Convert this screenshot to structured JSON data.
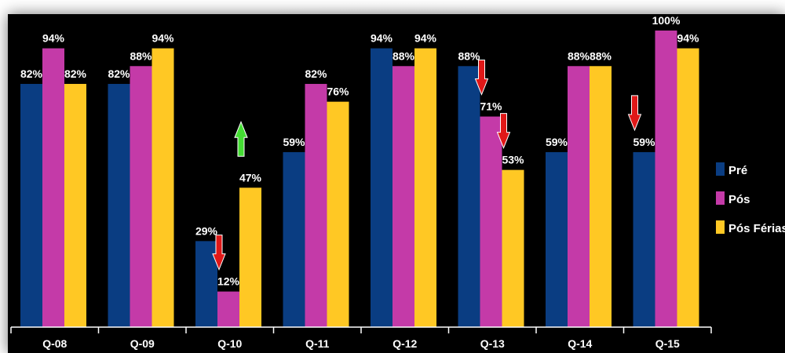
{
  "chart_data": {
    "type": "bar",
    "categories": [
      "Q-08",
      "Q-09",
      "Q-10",
      "Q-11",
      "Q-12",
      "Q-13",
      "Q-14",
      "Q-15"
    ],
    "series": [
      {
        "name": "Pré",
        "color": "#0a3d82",
        "values": [
          82,
          82,
          29,
          59,
          94,
          88,
          59,
          59
        ]
      },
      {
        "name": "Pós",
        "color": "#c43aa8",
        "values": [
          94,
          88,
          12,
          82,
          88,
          71,
          88,
          100
        ]
      },
      {
        "name": "Pós Férias",
        "color": "#ffc824",
        "values": [
          82,
          94,
          47,
          76,
          94,
          53,
          88,
          94
        ]
      }
    ],
    "value_labels": [
      [
        "82%",
        "82%",
        "29%",
        "59%",
        "94%",
        "88%",
        "59%",
        "59%"
      ],
      [
        "94%",
        "88%",
        "12%",
        "82%",
        "88%",
        "71%",
        "88%",
        "100%"
      ],
      [
        "82%",
        "94%",
        "47%",
        "76%",
        "94%",
        "53%",
        "88%",
        "94%"
      ]
    ],
    "ylim": [
      0,
      105
    ],
    "legend_position": "right",
    "annotations": [
      {
        "type": "arrow-down",
        "color": "#e01818",
        "category": "Q-10",
        "series": 1
      },
      {
        "type": "arrow-up",
        "color": "#44dd33",
        "category": "Q-10",
        "series": 2
      },
      {
        "type": "arrow-down",
        "color": "#e01818",
        "category": "Q-13",
        "series": 1
      },
      {
        "type": "arrow-down",
        "color": "#e01818",
        "category": "Q-13",
        "series": 2
      },
      {
        "type": "arrow-down",
        "color": "#e01818",
        "category": "Q-15",
        "series": 0
      },
      {
        "type": "arrow-up",
        "color": "#44dd33",
        "category": "Q-15",
        "series": 1
      }
    ]
  },
  "colors": {
    "background": "#000000",
    "axis": "#ffffff",
    "text": "#ffffff"
  }
}
